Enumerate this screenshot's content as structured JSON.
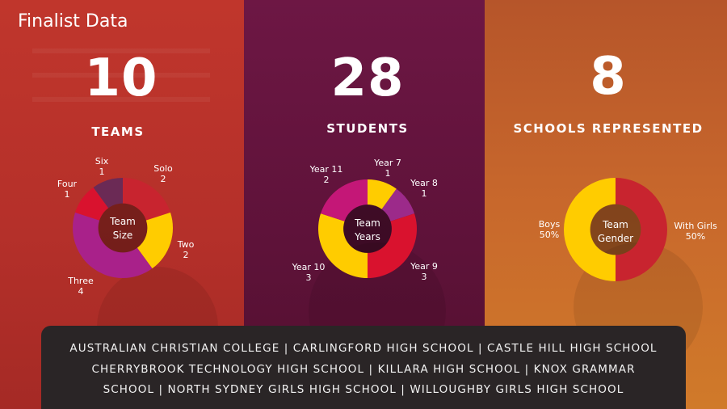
{
  "title": "Finalist Data",
  "stats": [
    {
      "value": "10",
      "label": "TEAMS"
    },
    {
      "value": "28",
      "label": "STUDENTS"
    },
    {
      "value": "8",
      "label": "SCHOOLS REPRESENTED"
    }
  ],
  "chart_data": [
    {
      "type": "pie",
      "donut": true,
      "center_label": [
        "Team",
        "Size"
      ],
      "slices": [
        {
          "label": "Solo",
          "value": 2,
          "color": "#c8242f"
        },
        {
          "label": "Two",
          "value": 2,
          "color": "#ffcc00"
        },
        {
          "label": "Three",
          "value": 4,
          "color": "#a9218a"
        },
        {
          "label": "Four",
          "value": 1,
          "color": "#d9122e"
        },
        {
          "label": "Six",
          "value": 1,
          "color": "#6b2a55"
        }
      ]
    },
    {
      "type": "pie",
      "donut": true,
      "center_label": [
        "Team",
        "Years"
      ],
      "slices": [
        {
          "label": "Year 7",
          "value": 1,
          "color": "#ffcc00"
        },
        {
          "label": "Year 8",
          "value": 1,
          "color": "#9c2a8a"
        },
        {
          "label": "Year 9",
          "value": 3,
          "color": "#d9122e"
        },
        {
          "label": "Year 10",
          "value": 3,
          "color": "#ffcc00"
        },
        {
          "label": "Year 11",
          "value": 2,
          "color": "#c41777"
        }
      ]
    },
    {
      "type": "pie",
      "donut": true,
      "center_label": [
        "Team",
        "Gender"
      ],
      "slices": [
        {
          "label": "With Girls",
          "value_label": "50%",
          "value": 50,
          "color": "#c8242f"
        },
        {
          "label": "Boys",
          "value_label": "50%",
          "value": 50,
          "color": "#ffcc00"
        }
      ]
    }
  ],
  "footer": {
    "lines": [
      "AUSTRALIAN CHRISTIAN COLLEGE | CARLINGFORD HIGH SCHOOL | CASTLE HILL HIGH SCHOOL",
      "CHERRYBROOK TECHNOLOGY HIGH SCHOOL | KILLARA HIGH SCHOOL | KNOX GRAMMAR",
      "SCHOOL | NORTH SYDNEY GIRLS HIGH SCHOOL | WILLOUGHBY GIRLS HIGH SCHOOL"
    ]
  }
}
